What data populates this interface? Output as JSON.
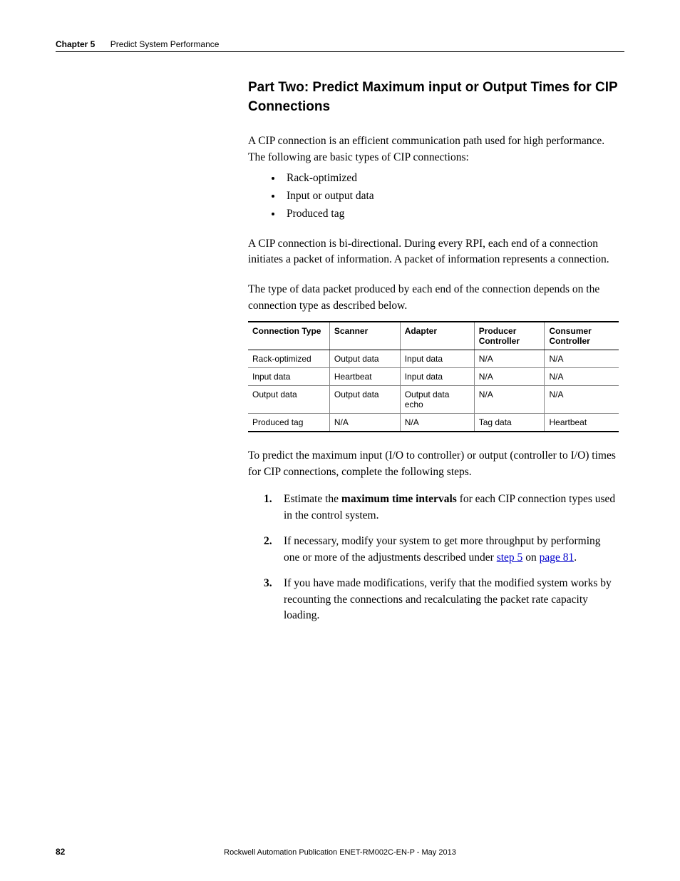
{
  "header": {
    "chapter_label": "Chapter 5",
    "chapter_title": "Predict System Performance"
  },
  "section_title": "Part Two:  Predict Maximum input or Output Times for CIP Connections",
  "para1": "A CIP connection is an efficient communication path used for high performance. The following are basic types of CIP connections:",
  "bullets": {
    "b0": "Rack-optimized",
    "b1": "Input or output data",
    "b2": "Produced tag"
  },
  "para2": "A CIP connection is bi-directional. During every RPI, each end of a connection initiates a packet of information. A packet of information represents a connection.",
  "para3": "The type of data packet produced by each end of the connection depends on the connection type as described below.",
  "table": {
    "headers": {
      "h0": "Connection Type",
      "h1": "Scanner",
      "h2": "Adapter",
      "h3": "Producer Controller",
      "h4": "Consumer Controller"
    },
    "rows": {
      "r0": {
        "c0": "Rack-optimized",
        "c1": "Output data",
        "c2": "Input data",
        "c3": "N/A",
        "c4": "N/A"
      },
      "r1": {
        "c0": "Input data",
        "c1": "Heartbeat",
        "c2": "Input data",
        "c3": "N/A",
        "c4": "N/A"
      },
      "r2": {
        "c0": "Output data",
        "c1": "Output data",
        "c2": "Output data echo",
        "c3": "N/A",
        "c4": "N/A"
      },
      "r3": {
        "c0": "Produced tag",
        "c1": "N/A",
        "c2": "N/A",
        "c3": "Tag data",
        "c4": "Heartbeat"
      }
    },
    "col_widths": {
      "w0": "22%",
      "w1": "19%",
      "w2": "20%",
      "w3": "19%",
      "w4": "20%"
    }
  },
  "para4": "To predict the maximum input (I/O to controller) or output (controller to I/O) times for CIP connections, complete the following steps.",
  "steps": {
    "s1_pre": "Estimate the ",
    "s1_bold": "maximum time intervals",
    "s1_post": " for each CIP connection types used in the control system.",
    "s2_pre": "If necessary, modify your system to get more throughput by performing one or more of the adjustments described under ",
    "s2_link1": "step 5",
    "s2_mid": " on ",
    "s2_link2": "page 81",
    "s2_post": ".",
    "s3": "If you have made modifications, verify that the modified system works by recounting the connections and recalculating the packet rate capacity loading."
  },
  "footer": {
    "page": "82",
    "publication": "Rockwell Automation Publication ENET-RM002C-EN-P - May 2013"
  },
  "colors": {
    "text": "#000000",
    "link": "#0000cc",
    "border_light": "#888888",
    "background": "#ffffff"
  }
}
